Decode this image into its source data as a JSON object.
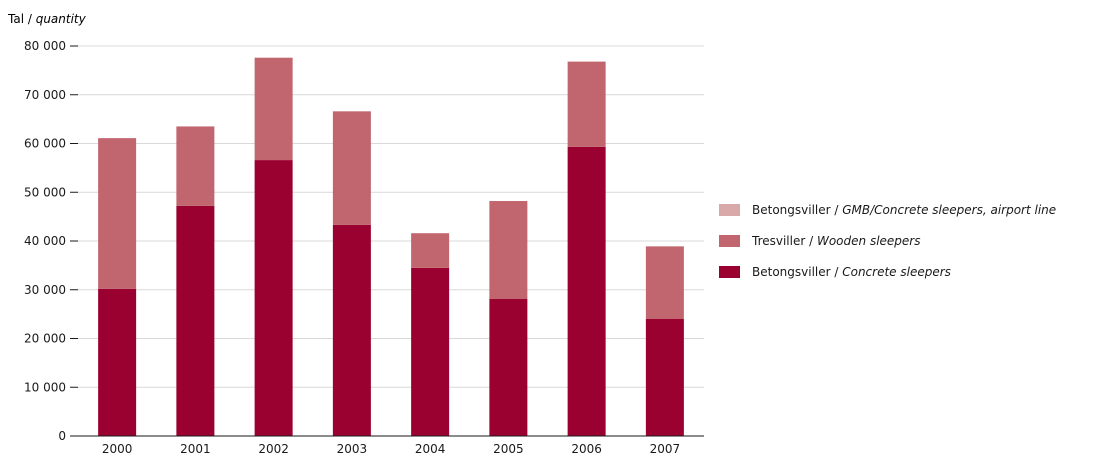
{
  "chart_data": {
    "type": "bar",
    "stacked": true,
    "ylabel": {
      "main": "Tal / ",
      "italic": "quantity"
    },
    "ylim": [
      0,
      80000
    ],
    "y_ticks": [
      "0",
      "10 000",
      "20 000",
      "30 000",
      "40 000",
      "50 000",
      "60 000",
      "70 000",
      "80 000"
    ],
    "y_tick_values": [
      0,
      10000,
      20000,
      30000,
      40000,
      50000,
      60000,
      70000,
      80000
    ],
    "grid": true,
    "legend_position": "right",
    "categories": [
      "2000",
      "2001",
      "2002",
      "2003",
      "2004",
      "2005",
      "2006",
      "2007"
    ],
    "series": [
      {
        "name": "Betongsviller / Concrete sleepers",
        "name_main": "Betongsviller / ",
        "name_italic": "Concrete sleepers",
        "color": "#9a0030",
        "values": [
          30200,
          47200,
          56600,
          43300,
          34500,
          28100,
          59300,
          24000
        ]
      },
      {
        "name": "Tresviller / Wooden sleepers",
        "name_main": "Tresviller / ",
        "name_italic": "Wooden sleepers",
        "color": "#c1666e",
        "values": [
          30900,
          16300,
          21000,
          23300,
          7100,
          20100,
          17500,
          14900
        ]
      },
      {
        "name": "Betongsviller / GMB/Concrete sleepers, airport line",
        "name_main": "Betongsviller / ",
        "name_italic": "GMB/Concrete sleepers, airport line",
        "color": "#d9a9a9",
        "values": [
          0,
          0,
          0,
          0,
          0,
          0,
          0,
          0
        ]
      }
    ]
  }
}
